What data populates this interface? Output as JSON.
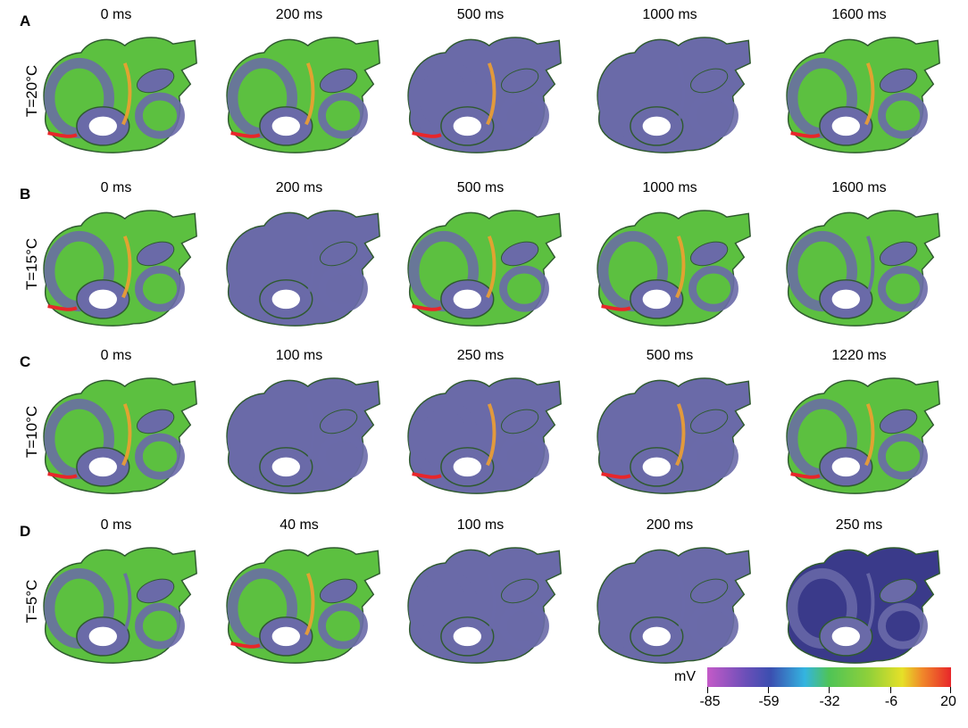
{
  "rows": [
    {
      "letter": "A",
      "temp": "T=20°C",
      "times": [
        "0 ms",
        "200 ms",
        "500 ms",
        "1000 ms",
        "1600 ms"
      ]
    },
    {
      "letter": "B",
      "temp": "T=15°C",
      "times": [
        "0 ms",
        "200 ms",
        "500 ms",
        "1000 ms",
        "1600 ms"
      ]
    },
    {
      "letter": "C",
      "temp": "T=10°C",
      "times": [
        "0 ms",
        "100 ms",
        "250 ms",
        "500 ms",
        "1220 ms"
      ]
    },
    {
      "letter": "D",
      "temp": "T=5°C",
      "times": [
        "0 ms",
        "40 ms",
        "100 ms",
        "200 ms",
        "250 ms"
      ]
    }
  ],
  "colorbar": {
    "unit": "mV",
    "ticks": [
      "-85",
      "-59",
      "-32",
      "-6",
      "20"
    ]
  },
  "colors": {
    "depolarized": "#e8262a",
    "wavefront": "#f0a030",
    "mid": "#5cc040",
    "rest": "#6a6aa8",
    "deep_rest": "#3a3a8a"
  }
}
